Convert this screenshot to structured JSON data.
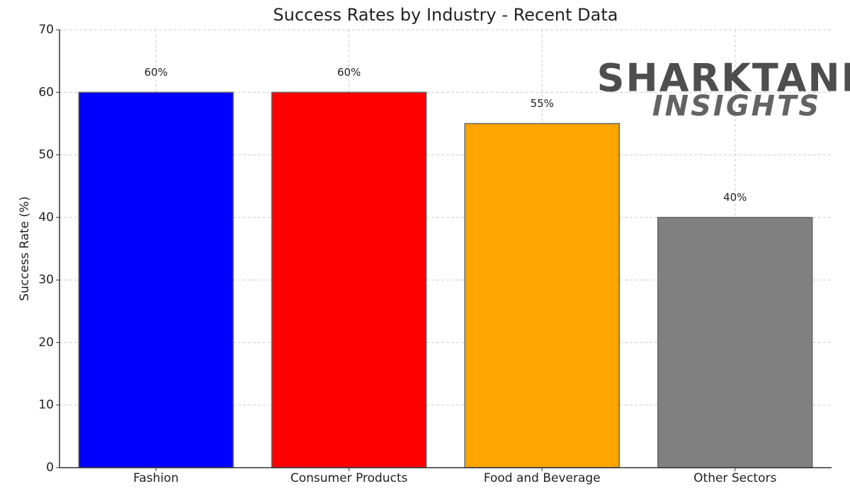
{
  "chart_data": {
    "type": "bar",
    "title": "Success Rates by Industry - Recent Data",
    "y_label": "Success Rate (%)",
    "categories": [
      "Fashion",
      "Consumer Products",
      "Food and Beverage",
      "Other Sectors"
    ],
    "values": [
      60,
      60,
      55,
      40
    ],
    "value_labels": [
      "60%",
      "60%",
      "55%",
      "40%"
    ],
    "colors": [
      "#0000ff",
      "#ff0000",
      "#ffa500",
      "#808080"
    ],
    "ylim": [
      0,
      70
    ],
    "yticks": [
      0,
      10,
      20,
      30,
      40,
      50,
      60,
      70
    ],
    "grid": true,
    "watermark": [
      "SHARKTANK",
      "INSIGHTS"
    ]
  }
}
